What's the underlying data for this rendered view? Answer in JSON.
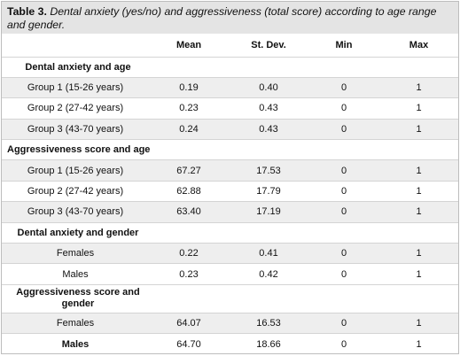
{
  "caption": {
    "table_label": "Table 3.",
    "title": "Dental anxiety (yes/no) and aggressiveness (total score) according to age range and gender."
  },
  "columns": [
    "",
    "Mean",
    "St. Dev.",
    "Min",
    "Max"
  ],
  "sections": [
    {
      "title": "Dental anxiety and age",
      "title_align": "center",
      "rows": [
        {
          "label": "Group 1 (15-26 years)",
          "mean": "0.19",
          "sd": "0.40",
          "min": "0",
          "max": "1"
        },
        {
          "label": "Group 2 (27-42 years)",
          "mean": "0.23",
          "sd": "0.43",
          "min": "0",
          "max": "1"
        },
        {
          "label": "Group 3 (43-70 years)",
          "mean": "0.24",
          "sd": "0.43",
          "min": "0",
          "max": "1"
        }
      ]
    },
    {
      "title": "Aggressiveness score and age",
      "title_align": "left",
      "rows": [
        {
          "label": "Group 1 (15-26 years)",
          "mean": "67.27",
          "sd": "17.53",
          "min": "0",
          "max": "1"
        },
        {
          "label": "Group 2 (27-42 years)",
          "mean": "62.88",
          "sd": "17.79",
          "min": "0",
          "max": "1"
        },
        {
          "label": "Group 3 (43-70 years)",
          "mean": "63.40",
          "sd": "17.19",
          "min": "0",
          "max": "1"
        }
      ]
    },
    {
      "title": "Dental anxiety and gender",
      "title_align": "center",
      "rows": [
        {
          "label": "Females",
          "mean": "0.22",
          "sd": "0.41",
          "min": "0",
          "max": "1"
        },
        {
          "label": "Males",
          "mean": "0.23",
          "sd": "0.42",
          "min": "0",
          "max": "1"
        }
      ]
    },
    {
      "title": "Aggressiveness score and gender",
      "title_align": "center",
      "rows": [
        {
          "label": "Females",
          "mean": "64.07",
          "sd": "16.53",
          "min": "0",
          "max": "1"
        },
        {
          "label": "Males",
          "mean": "64.70",
          "sd": "18.66",
          "min": "0",
          "max": "1"
        }
      ]
    }
  ]
}
